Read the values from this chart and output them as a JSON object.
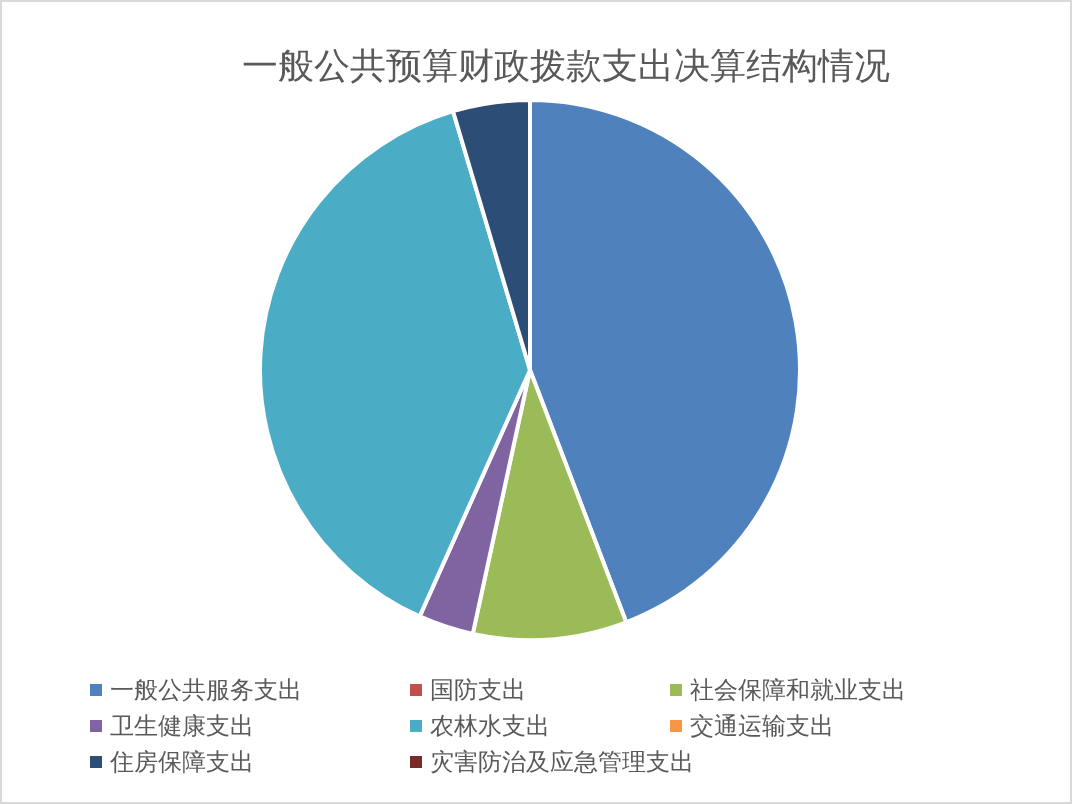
{
  "chart_data": {
    "type": "pie",
    "title": "一般公共预算财政拨款支出决算结构情况",
    "categories": [
      "一般公共服务支出",
      "国防支出",
      "社会保障和就业支出",
      "卫生健康支出",
      "农林水支出",
      "交通运输支出",
      "住房保障支出",
      "灾害防治及应急管理支出"
    ],
    "values": [
      44.2,
      0,
      9.2,
      3.3,
      38.7,
      0,
      4.6,
      0
    ],
    "colors": [
      "#4f81bd",
      "#c0504d",
      "#9bbb59",
      "#8064a2",
      "#4bacc6",
      "#f79646",
      "#2c4d75",
      "#772c2a"
    ],
    "legend": "bottom"
  }
}
